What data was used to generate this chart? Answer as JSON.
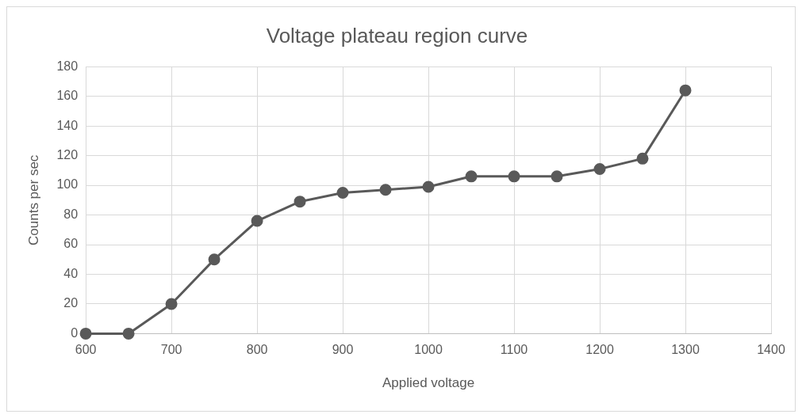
{
  "chart_data": {
    "type": "line",
    "title": "Voltage plateau region curve",
    "xlabel": "Applied voltage",
    "ylabel": "Counts per sec",
    "x": [
      600,
      650,
      700,
      750,
      800,
      850,
      900,
      950,
      1000,
      1050,
      1100,
      1150,
      1200,
      1250,
      1300
    ],
    "series": [
      {
        "color": "#595959",
        "values": [
          0,
          0,
          20,
          50,
          76,
          89,
          95,
          97,
          99,
          106,
          106,
          106,
          111,
          118,
          164
        ]
      }
    ],
    "xlim": [
      600,
      1400
    ],
    "xticks": [
      600,
      700,
      800,
      900,
      1000,
      1100,
      1200,
      1300,
      1400
    ],
    "ylim": [
      0,
      180
    ],
    "yticks": [
      0,
      20,
      40,
      60,
      80,
      100,
      120,
      140,
      160,
      180
    ],
    "grid": true,
    "legend": false,
    "marker": "circle",
    "line_style": "solid"
  }
}
